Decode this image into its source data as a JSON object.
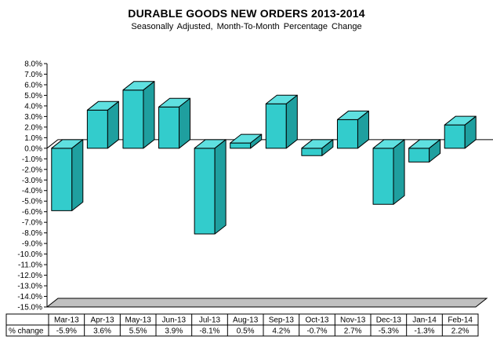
{
  "chart_data": {
    "type": "bar",
    "title": "DURABLE GOODS NEW ORDERS 2013-2014",
    "subtitle": "Seasonally Adjusted,  Month-To-Month  Percentage  Change",
    "categories": [
      "Mar-13",
      "Apr-13",
      "May-13",
      "Jun-13",
      "Jul-13",
      "Aug-13",
      "Sep-13",
      "Oct-13",
      "Nov-13",
      "Dec-13",
      "Jan-14",
      "Feb-14"
    ],
    "values": [
      -5.9,
      3.6,
      5.5,
      3.9,
      -8.1,
      0.5,
      4.2,
      -0.7,
      2.7,
      -5.3,
      -1.3,
      2.2
    ],
    "value_labels": [
      "-5.9%",
      "3.6%",
      "5.5%",
      "3.9%",
      "-8.1%",
      "0.5%",
      "4.2%",
      "-0.7%",
      "2.7%",
      "-5.3%",
      "-1.3%",
      "2.2%"
    ],
    "ylim": [
      -15,
      8
    ],
    "ytick_step": 1,
    "ytick_labels": [
      "8.0%",
      "7.0%",
      "6.0%",
      "5.0%",
      "4.0%",
      "3.0%",
      "2.0%",
      "1.0%",
      "0.0%",
      "-1.0%",
      "-2.0%",
      "-3.0%",
      "-4.0%",
      "-5.0%",
      "-6.0%",
      "-7.0%",
      "-8.0%",
      "-9.0%",
      "-10.0%",
      "-11.0%",
      "-12.0%",
      "-13.0%",
      "-14.0%",
      "-15.0%"
    ],
    "table_row_label": "% change",
    "xlabel": "",
    "ylabel": "",
    "grid": false,
    "legend": "none",
    "colors": {
      "front": "#33cccc",
      "top": "#5fe0e0",
      "side": "#1f9f9f",
      "stroke": "#000000",
      "floor": "#c0c0c0",
      "background": "#ffffff"
    }
  }
}
